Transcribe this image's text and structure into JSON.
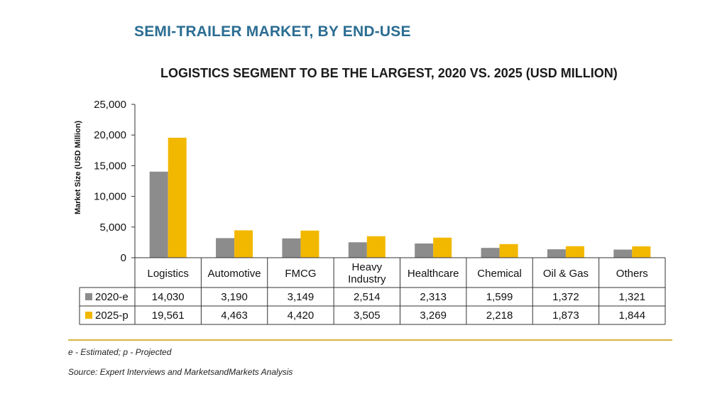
{
  "page_title": "SEMI-TRAILER MARKET, BY END-USE",
  "footnote": "e - Estimated; p - Projected",
  "source": "Source: Expert Interviews and MarketsandMarkets Analysis",
  "colors": {
    "series_2020": "#8c8c8c",
    "series_2025": "#f2b800",
    "title": "#2b6d92",
    "divider": "#d7b640"
  },
  "chart_data": {
    "type": "bar",
    "title": "LOGISTICS SEGMENT TO BE THE LARGEST, 2020 VS. 2025 (USD MILLION)",
    "ylabel": "Market Size (USD Million)",
    "xlabel": "",
    "ylim": [
      0,
      25000
    ],
    "yticks": [
      "25,000",
      "20,000",
      "15,000",
      "10,000",
      "5,000",
      "0"
    ],
    "ytick_values": [
      25000,
      20000,
      15000,
      10000,
      5000,
      0
    ],
    "categories": [
      "Logistics",
      "Automotive",
      "FMCG",
      "Heavy Industry",
      "Healthcare",
      "Chemical",
      "Oil & Gas",
      "Others"
    ],
    "category_lines": [
      [
        "Logistics"
      ],
      [
        "Automotive"
      ],
      [
        "FMCG"
      ],
      [
        "Heavy",
        "Industry"
      ],
      [
        "Healthcare"
      ],
      [
        "Chemical"
      ],
      [
        "Oil & Gas"
      ],
      [
        "Others"
      ]
    ],
    "series": [
      {
        "name": "2020-e",
        "values": [
          14030,
          3190,
          3149,
          2514,
          2313,
          1599,
          1372,
          1321
        ],
        "labels": [
          "14,030",
          "3,190",
          "3,149",
          "2,514",
          "2,313",
          "1,599",
          "1,372",
          "1,321"
        ]
      },
      {
        "name": "2025-p",
        "values": [
          19561,
          4463,
          4420,
          3505,
          3269,
          2218,
          1873,
          1844
        ],
        "labels": [
          "19,561",
          "4,463",
          "4,420",
          "3,505",
          "3,269",
          "2,218",
          "1,873",
          "1,844"
        ]
      }
    ],
    "grid": false,
    "legend": "data-table"
  }
}
